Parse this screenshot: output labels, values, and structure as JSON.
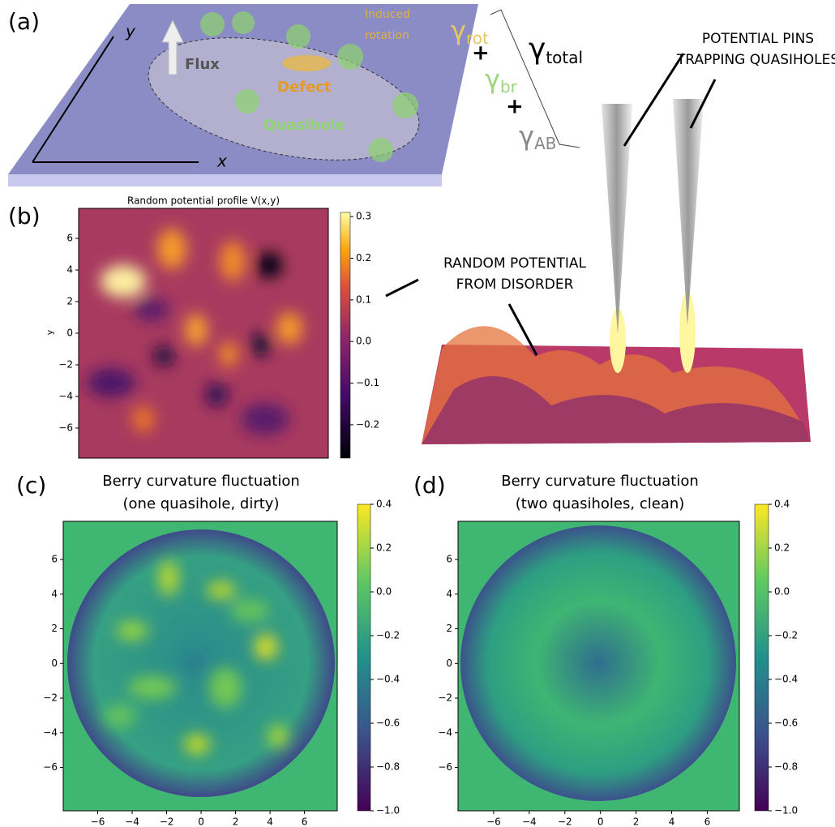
{
  "panel_a": {
    "label": "(a)",
    "x_axis": "x",
    "y_axis": "y",
    "flux": "Flux",
    "defect": "Defect",
    "quasihole": "Quasihole",
    "induced_rotation": [
      "Induced",
      "rotation"
    ],
    "gamma_rot": {
      "symbol": "γ",
      "sub": "rot"
    },
    "gamma_br": {
      "symbol": "γ",
      "sub": "br"
    },
    "gamma_ab": {
      "symbol": "γ",
      "sub": "AB"
    },
    "gamma_total": {
      "symbol": "γ",
      "sub": "total"
    },
    "plus_signs": [
      "+",
      "+"
    ]
  },
  "annotations": {
    "pins": [
      "POTENTIAL PINS",
      "TRAPPING QUASIHOLES"
    ],
    "disorder": [
      "RANDOM POTENTIAL",
      "FROM DISORDER"
    ]
  },
  "panel_b": {
    "label": "(b)",
    "title": "Random potential profile V(x,y)",
    "y_label": "y",
    "ylim": [
      -7.9,
      7.9
    ],
    "yticks": [
      6,
      4,
      2,
      0,
      {
        "value": -2,
        "label": "−2"
      },
      {
        "value": -4,
        "label": "−4"
      },
      {
        "value": -6,
        "label": "−6"
      }
    ],
    "colorbar": {
      "lim": [
        -0.28,
        0.31
      ],
      "ticks": [
        0.3,
        0.2,
        0.1,
        {
          "value": 0,
          "label": "0.0"
        },
        {
          "value": -0.1,
          "label": "−0.1"
        },
        {
          "value": -0.2,
          "label": "−0.2"
        }
      ]
    }
  },
  "panel_c": {
    "label": "(c)",
    "title": [
      "Berry curvature fluctuation",
      "(one quasihole, dirty)"
    ],
    "xlim": [
      -8,
      7.9
    ],
    "ylim": [
      -8.5,
      8.2
    ],
    "xticks": [
      {
        "value": -6,
        "label": "−6"
      },
      {
        "value": -4,
        "label": "−4"
      },
      {
        "value": -2,
        "label": "−2"
      },
      0,
      2,
      4,
      6
    ],
    "yticks": [
      6,
      4,
      2,
      0,
      {
        "value": -2,
        "label": "−2"
      },
      {
        "value": -4,
        "label": "−4"
      },
      {
        "value": -6,
        "label": "−6"
      }
    ],
    "colorbar": {
      "lim": [
        -1,
        0.4
      ],
      "ticks": [
        0.4,
        0.2,
        {
          "value": 0,
          "label": "0.0"
        },
        {
          "value": -0.2,
          "label": "−0.2"
        },
        {
          "value": -0.4,
          "label": "−0.4"
        },
        {
          "value": -0.6,
          "label": "−0.6"
        },
        {
          "value": -0.8,
          "label": "−0.8"
        },
        {
          "value": -1,
          "label": "−1.0"
        }
      ]
    }
  },
  "panel_d": {
    "label": "(d)",
    "title": [
      "Berry curvature fluctuation",
      "(two quasiholes, clean)"
    ],
    "xlim": [
      -8,
      7.8
    ],
    "ylim": [
      -8.5,
      8.2
    ],
    "xticks": [
      {
        "value": -6,
        "label": "−6"
      },
      {
        "value": -4,
        "label": "−4"
      },
      {
        "value": -2,
        "label": "−2"
      },
      0,
      2,
      4,
      6
    ],
    "yticks": [
      6,
      4,
      2,
      0,
      {
        "value": -2,
        "label": "−2"
      },
      {
        "value": -4,
        "label": "−4"
      },
      {
        "value": -6,
        "label": "−6"
      }
    ],
    "colorbar": {
      "lim": [
        -1,
        0.4
      ],
      "ticks": [
        0.4,
        0.2,
        {
          "value": 0,
          "label": "0.0"
        },
        {
          "value": -0.2,
          "label": "−0.2"
        },
        {
          "value": -0.4,
          "label": "−0.4"
        },
        {
          "value": -0.6,
          "label": "−0.6"
        },
        {
          "value": -0.8,
          "label": "−0.8"
        },
        {
          "value": -1,
          "label": "−1.0"
        }
      ]
    }
  }
}
